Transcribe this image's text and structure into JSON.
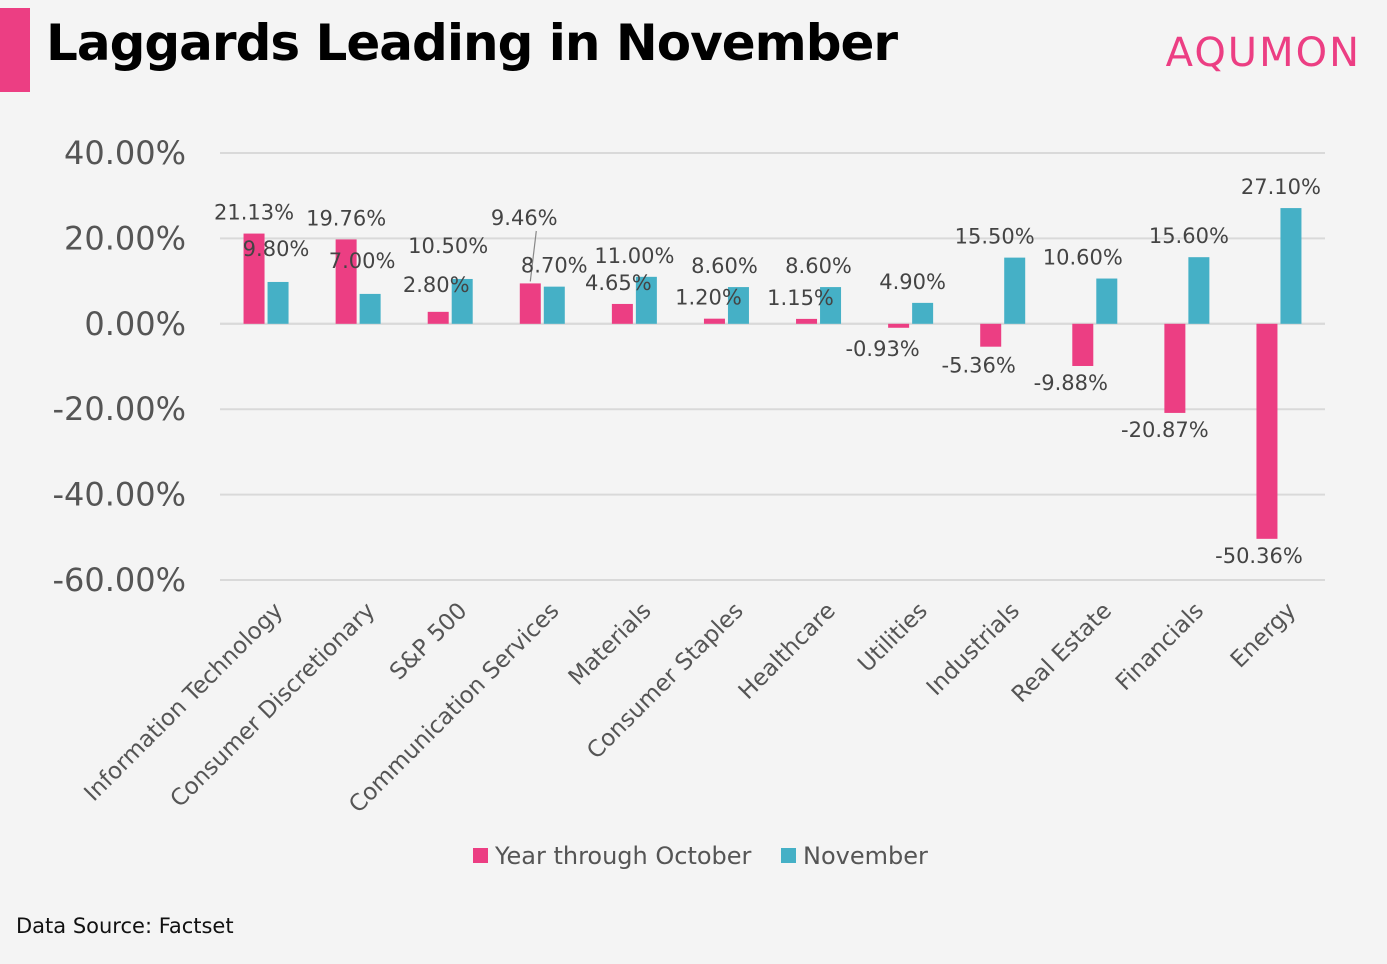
{
  "header": {
    "title": "Laggards Leading in November",
    "brand": "AQUMON"
  },
  "footer": {
    "source": "Data Source: Factset"
  },
  "colors": {
    "ytd": "#ec3e83",
    "nov": "#45b0c6",
    "accent": "#ec3e83"
  },
  "chart_data": {
    "type": "bar",
    "categories": [
      "Information Technology",
      "Consumer Discretionary",
      "S&P 500",
      "Communication Services",
      "Materials",
      "Consumer Staples",
      "Healthcare",
      "Utilities",
      "Industrials",
      "Real Estate",
      "Financials",
      "Energy"
    ],
    "series": [
      {
        "name": "Year through October",
        "values": [
          21.13,
          19.76,
          2.8,
          9.46,
          4.65,
          1.2,
          1.15,
          -0.93,
          -5.36,
          -9.88,
          -20.87,
          -50.36
        ],
        "labels": [
          "21.13%",
          "19.76%",
          "2.80%",
          "9.46%",
          "4.65%",
          "1.20%",
          "1.15%",
          "-0.93%",
          "-5.36%",
          "-9.88%",
          "-20.87%",
          "-50.36%"
        ]
      },
      {
        "name": "November",
        "values": [
          9.8,
          7.0,
          10.5,
          8.7,
          11.0,
          8.6,
          8.6,
          4.9,
          15.5,
          10.6,
          15.6,
          27.1
        ],
        "labels": [
          "9.80%",
          "7.00%",
          "10.50%",
          "8.70%",
          "11.00%",
          "8.60%",
          "8.60%",
          "4.90%",
          "15.50%",
          "10.60%",
          "15.60%",
          "27.10%"
        ]
      }
    ],
    "y_ticks": [
      "40.00%",
      "20.00%",
      "0.00%",
      "-20.00%",
      "-40.00%",
      "-60.00%"
    ],
    "ylim": [
      -60,
      40
    ],
    "grid": true,
    "legend_position": "bottom"
  }
}
